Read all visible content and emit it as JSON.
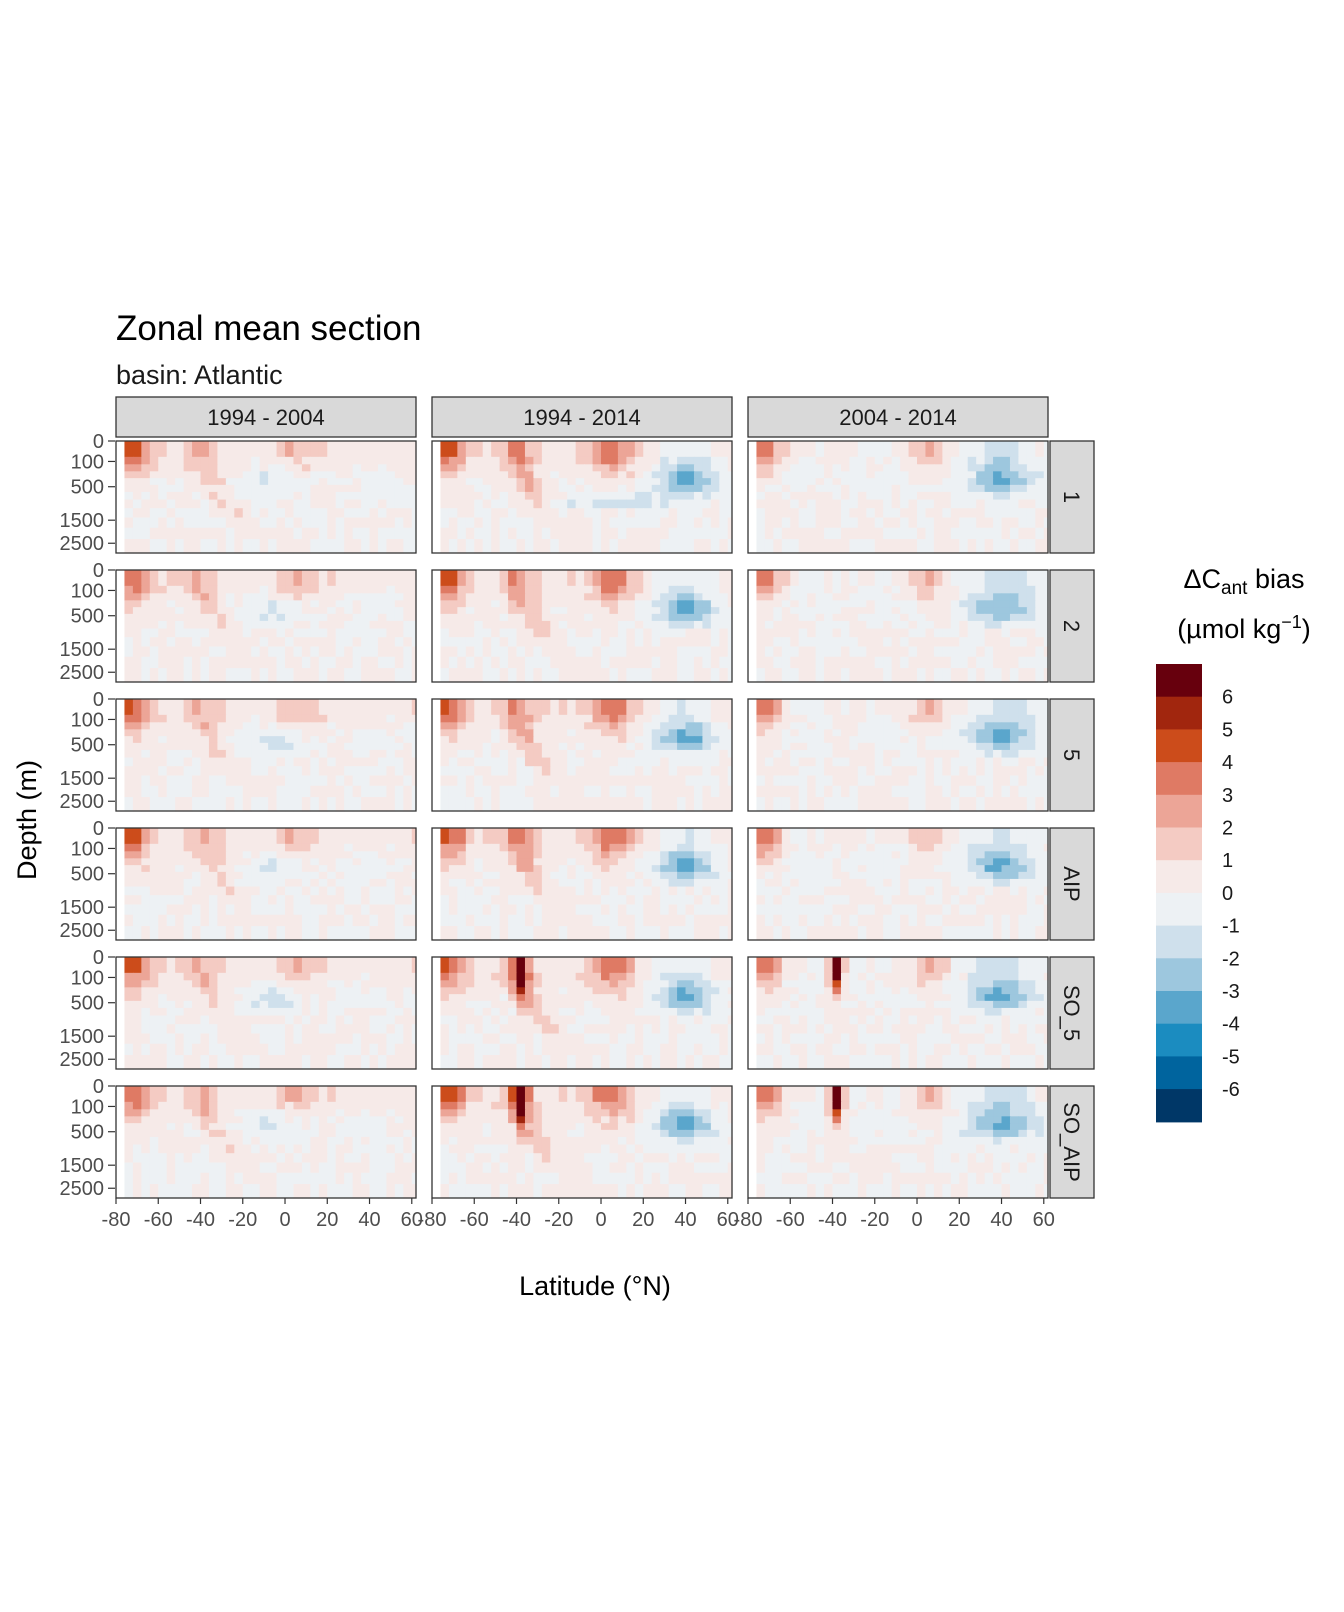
{
  "chart_data": {
    "type": "heatmap",
    "title": "Zonal mean section",
    "subtitle": "basin: Atlantic",
    "xlabel": "Latitude (°N)",
    "ylabel": "Depth (m)",
    "columns": [
      "1994 - 2004",
      "1994 - 2014",
      "2004 - 2014"
    ],
    "rows": [
      "1",
      "2",
      "5",
      "AIP",
      "SO_5",
      "SO_AIP"
    ],
    "x_ticks": [
      "-80",
      "-60",
      "-40",
      "-20",
      "0",
      "20",
      "40",
      "60"
    ],
    "y_ticks": [
      "0",
      "100",
      "500",
      "1500",
      "2500"
    ],
    "xlim": [
      -80,
      62
    ],
    "ylim": [
      0,
      3000
    ],
    "legend": {
      "title_prefix": "ΔC",
      "title_sub": "ant",
      "title_suffix": " bias",
      "units_prefix": "(µmol kg",
      "units_sup": "−1",
      "units_suffix": ")",
      "labels": [
        "6",
        "5",
        "4",
        "3",
        "2",
        "1",
        "0",
        "-1",
        "-2",
        "-3",
        "-4",
        "-5",
        "-6"
      ],
      "colors": [
        "#67000d",
        "#a1260e",
        "#cc4c1b",
        "#df7a64",
        "#eca597",
        "#f4cbc3",
        "#f6eae8",
        "#edf1f4",
        "#cfe0ec",
        "#9dc7de",
        "#5aa6cc",
        "#1b8cc0",
        "#00649e",
        "#003767"
      ],
      "placement": "right"
    }
  }
}
